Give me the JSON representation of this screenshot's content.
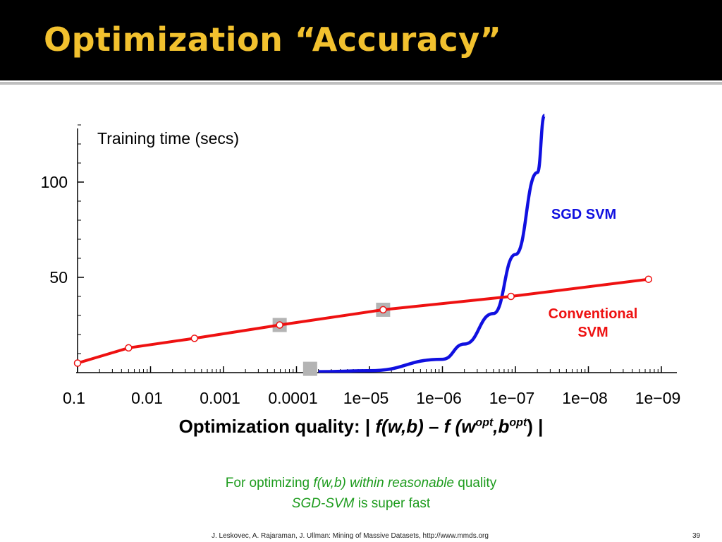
{
  "slide": {
    "title": "Optimization “Accuracy”",
    "xlabel_parts": {
      "lead": "Optimization quality: | ",
      "f1": "f(w,b)",
      "dash": " – ",
      "f2": "f (w",
      "sup1": "opt",
      "comma": ",b",
      "sup2": "opt",
      "tail": ") |"
    },
    "note_line1": {
      "pre": "For optimizing ",
      "italic": "f(w,b) within reasonable",
      "post": " quality"
    },
    "note_line2": {
      "italic": "SGD-SVM",
      "post": " is super fast"
    },
    "footer": "J. Leskovec, A. Rajaraman, J. Ullman: Mining of Massive Datasets, http://www.mmds.org",
    "page_number": "39",
    "colors": {
      "header_bg": "#000000",
      "title": "#f2c12e",
      "note": "#1e9c1e",
      "sgd": "#1010e0",
      "conventional": "#ee1111"
    }
  },
  "chart_data": {
    "type": "line",
    "ylabel": "Training time (secs)",
    "x_scale": "log (reversed, decreasing left to right)",
    "x_ticks": [
      "0.1",
      "0.01",
      "0.001",
      "0.0001",
      "1e−05",
      "1e−06",
      "1e−07",
      "1e−08",
      "1e−09"
    ],
    "y_ticks": [
      "50",
      "100"
    ],
    "ylim": [
      0,
      130
    ],
    "series": [
      {
        "name": "SGD SVM",
        "label_lines": [
          "SGD SVM"
        ],
        "color": "#1010e0",
        "x": [
          5e-05,
          1e-05,
          1e-06,
          5e-07,
          2e-07,
          1e-07,
          5e-08,
          4e-08
        ],
        "y": [
          0.5,
          1,
          7,
          15,
          31,
          62,
          105,
          135
        ],
        "point_markers": false
      },
      {
        "name": "Conventional SVM",
        "label_lines": [
          "Conventional",
          "SVM"
        ],
        "color": "#ee1111",
        "x": [
          0.1,
          0.02,
          0.0025,
          0.00017,
          6.5e-06,
          1.15e-07,
          1.5e-09
        ],
        "y": [
          5,
          13,
          18,
          25,
          33,
          40,
          49
        ],
        "marked": [
          true,
          true,
          true,
          true,
          true,
          true,
          true
        ]
      }
    ],
    "gray_squares": [
      {
        "x": 0.00017,
        "y": 25
      },
      {
        "x": 6.5e-06,
        "y": 33
      },
      {
        "x": 6.5e-05,
        "y": 2
      }
    ],
    "grid": false,
    "legend": "inline labels"
  }
}
